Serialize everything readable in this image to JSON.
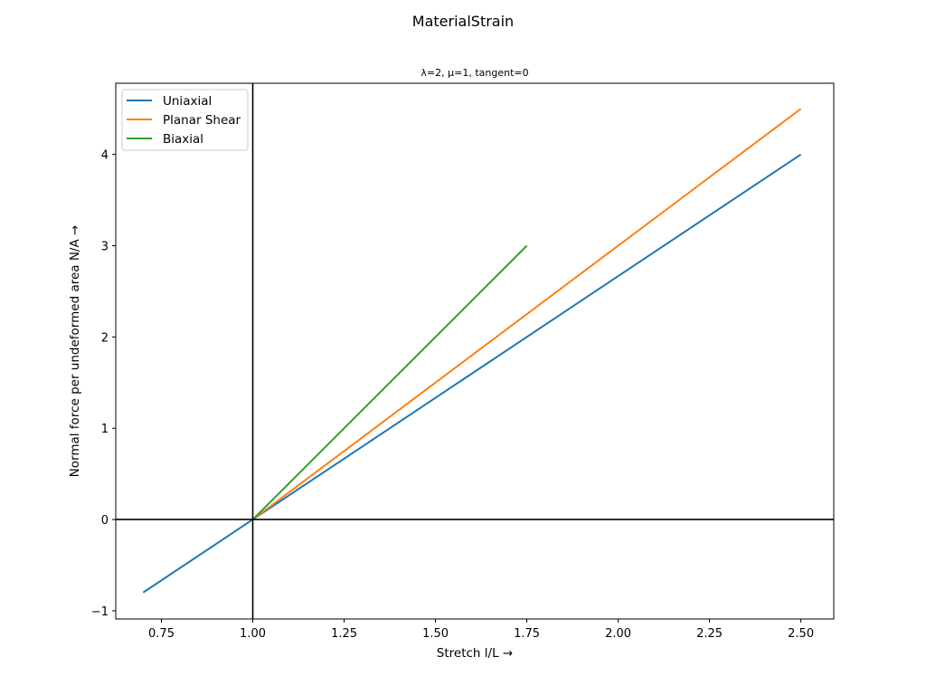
{
  "figure_title": "MaterialStrain",
  "chart_data": {
    "type": "line",
    "title": "λ=2, μ=1, tangent=0",
    "xlabel": "Stretch l/L  →",
    "ylabel": "Normal force per undeformed area N/A  →",
    "xlim": [
      0.625,
      2.59
    ],
    "ylim": [
      -1.09,
      4.78
    ],
    "xticks": [
      0.75,
      1.0,
      1.25,
      1.5,
      1.75,
      2.0,
      2.25,
      2.5
    ],
    "xtick_labels": [
      "0.75",
      "1.00",
      "1.25",
      "1.50",
      "1.75",
      "2.00",
      "2.25",
      "2.50"
    ],
    "yticks": [
      -1,
      0,
      1,
      2,
      3,
      4
    ],
    "ytick_labels": [
      "−1",
      "0",
      "1",
      "2",
      "3",
      "4"
    ],
    "reference_lines": {
      "x": 1.0,
      "y": 0
    },
    "grid": false,
    "legend_position": "top-left",
    "series": [
      {
        "name": "Uniaxial",
        "color": "#1f77b4",
        "x": [
          0.7,
          1.0,
          2.5
        ],
        "y": [
          -0.8,
          0.0,
          4.0
        ]
      },
      {
        "name": "Planar Shear",
        "color": "#ff7f0e",
        "x": [
          1.0,
          2.5
        ],
        "y": [
          0.0,
          4.5
        ]
      },
      {
        "name": "Biaxial",
        "color": "#2ca02c",
        "x": [
          1.0,
          1.75
        ],
        "y": [
          0.0,
          3.0
        ]
      }
    ]
  }
}
